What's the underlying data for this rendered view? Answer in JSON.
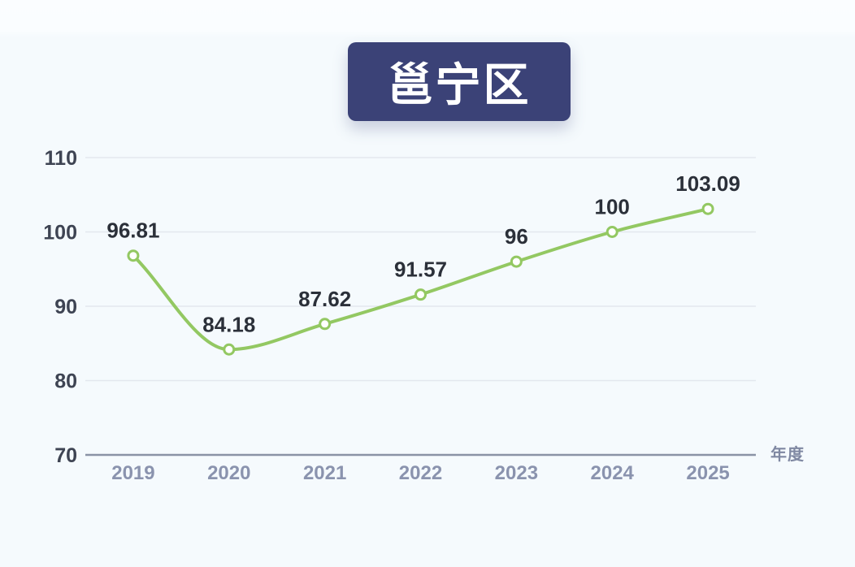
{
  "title_badge": {
    "label": "邕宁区"
  },
  "chart_data": {
    "type": "line",
    "title": "邕宁区",
    "categories": [
      "2019",
      "2020",
      "2021",
      "2022",
      "2023",
      "2024",
      "2025"
    ],
    "series": [
      {
        "name": "邕宁区",
        "values": [
          96.81,
          84.18,
          87.62,
          91.57,
          96,
          100,
          103.09
        ]
      }
    ],
    "data_labels": [
      "96.81",
      "84.18",
      "87.62",
      "91.57",
      "96",
      "100",
      "103.09"
    ],
    "xlabel": "年度",
    "ylabel": "",
    "ylim": [
      70,
      110
    ],
    "yticks": [
      70,
      80,
      90,
      100,
      110
    ],
    "grid": true,
    "smooth": true,
    "marker": "open-circle",
    "legend_position": "none",
    "colors": {
      "line": "#93c862",
      "marker_fill": "#ffffff",
      "marker_stroke": "#93c862",
      "grid_line": "#e3e7ee",
      "axis_line": "#8a93a6",
      "y_tick_text": "#3e4453",
      "x_tick_text": "#8a93ae",
      "data_label_text": "#2b3039",
      "unit_text": "#7f88a2",
      "badge_bg": "#3b4277",
      "badge_text": "#ffffff"
    }
  }
}
